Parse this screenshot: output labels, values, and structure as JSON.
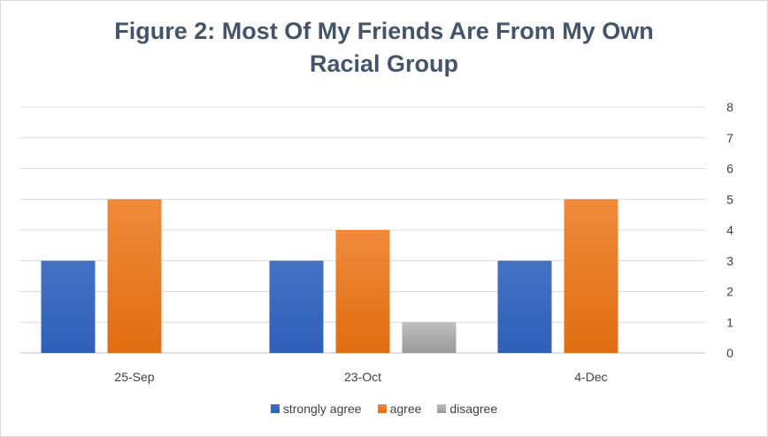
{
  "chart_data": {
    "type": "bar",
    "title_lines": [
      "Figure 2: Most Of My Friends Are From My Own",
      "Racial Group"
    ],
    "categories": [
      "25-Sep",
      "23-Oct",
      "4-Dec"
    ],
    "series": [
      {
        "name": "strongly agree",
        "values": [
          3,
          3,
          3
        ],
        "color": "#4472c4",
        "color_dark": "#2f5fb8"
      },
      {
        "name": "agree",
        "values": [
          5,
          4,
          5
        ],
        "color": "#f08a3a",
        "color_dark": "#e06d12"
      },
      {
        "name": "disagree",
        "values": [
          null,
          1,
          null
        ],
        "color": "#bfbfbf",
        "color_dark": "#9a9a9a"
      }
    ],
    "ylim": [
      0,
      8
    ],
    "y_ticks": [
      "0",
      "1",
      "2",
      "3",
      "4",
      "5",
      "6",
      "7",
      "8"
    ],
    "y_axis_side": "right",
    "grid": true,
    "legend_position": "bottom"
  }
}
